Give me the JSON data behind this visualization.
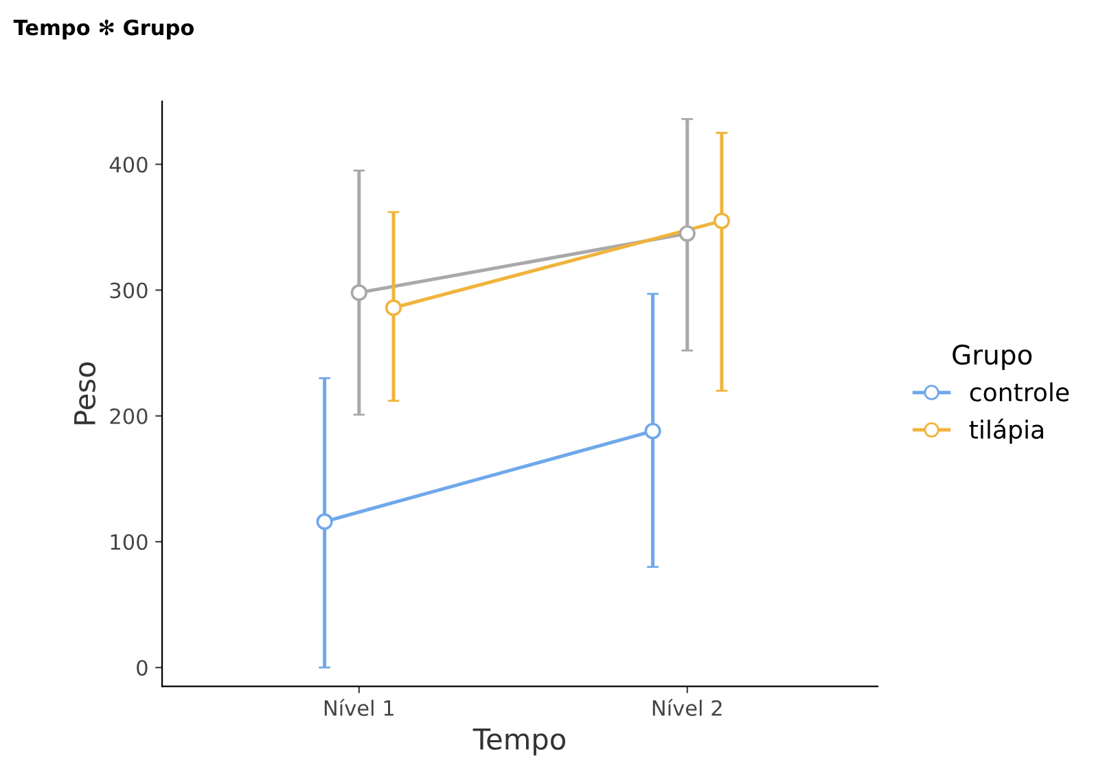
{
  "chart_data": {
    "type": "line",
    "title": "Tempo ✻ Grupo",
    "xlabel": "Tempo",
    "ylabel": "Peso",
    "legend_title": "Grupo",
    "categories": [
      "Nível 1",
      "Nível 2"
    ],
    "series": [
      {
        "name": "controle",
        "color": "#6fa8ea",
        "values": [
          116,
          188
        ],
        "errors": [
          [
            0,
            230
          ],
          [
            80,
            297
          ]
        ]
      },
      {
        "color": "#a9a9a9",
        "values": [
          298,
          345
        ],
        "errors": [
          [
            201,
            395
          ],
          [
            252,
            436
          ]
        ]
      },
      {
        "name": "tilápia",
        "color": "#f0b43c",
        "values": [
          286,
          355
        ],
        "errors": [
          [
            212,
            362
          ],
          [
            220,
            425
          ]
        ]
      }
    ],
    "ylim": [
      -15,
      450
    ],
    "yticks": [
      0,
      100,
      200,
      300,
      400
    ],
    "grid": false,
    "legend": "right",
    "marker": "circle",
    "line_style": "solid"
  }
}
